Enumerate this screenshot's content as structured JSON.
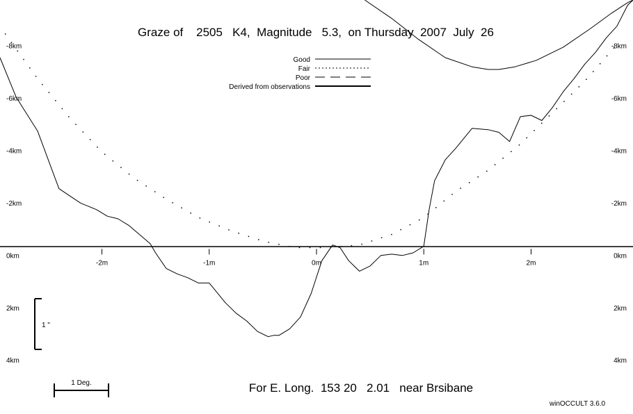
{
  "chart_data": {
    "type": "line",
    "title": "Graze of    2505   K4,  Magnitude   5.3,  on Thursday  2007  July  26",
    "footer": "For E. Long.  153 20   2.01   near Brsibane",
    "credit": "winOCCULT 3.6.0",
    "x_unit": "m",
    "y_unit": "km",
    "xlim": [
      -2.95,
      2.95
    ],
    "ylim": [
      -9.5,
      6.3
    ],
    "x_ticks": [
      {
        "value": -2,
        "label": "-2m"
      },
      {
        "value": -1,
        "label": "-1m"
      },
      {
        "value": 0,
        "label": "0m"
      },
      {
        "value": 1,
        "label": "1m"
      },
      {
        "value": 2,
        "label": "2m"
      }
    ],
    "y_ticks": [
      {
        "value": -8,
        "label": "-8km"
      },
      {
        "value": -6,
        "label": "-6km"
      },
      {
        "value": -4,
        "label": "-4km"
      },
      {
        "value": -2,
        "label": "-2km"
      },
      {
        "value": 0,
        "label": "0km"
      },
      {
        "value": 2,
        "label": "2km"
      },
      {
        "value": 4,
        "label": "4km"
      }
    ],
    "legend": [
      {
        "label": "Good",
        "style": "solid"
      },
      {
        "label": "Fair",
        "style": "dotted"
      },
      {
        "label": "Poor",
        "style": "dashed"
      },
      {
        "label": "Derived from observations",
        "style": "thick"
      }
    ],
    "scale_bar_vertical": {
      "label": "1 \""
    },
    "scale_bar_horizontal": {
      "label": "1 Deg."
    },
    "series": [
      {
        "style": "solid",
        "x": [
          -2.95,
          -2.8,
          -2.6,
          -2.4,
          -2.2,
          -2.05,
          -1.95,
          -1.85,
          -1.75,
          -1.65,
          -1.55,
          -1.5,
          -1.4,
          -1.3,
          -1.2,
          -1.1,
          -1.0,
          -0.95,
          -0.85,
          -0.75,
          -0.65,
          -0.55,
          -0.45,
          -0.4,
          -0.35,
          -0.25,
          -0.15,
          -0.05,
          0.05,
          0.15,
          0.22,
          0.3,
          0.4,
          0.5,
          0.6,
          0.7,
          0.8,
          0.9,
          1.0,
          1.05,
          1.1,
          1.2,
          1.3,
          1.45,
          1.6,
          1.7,
          1.8,
          1.9,
          2.0,
          2.1,
          2.2,
          2.3,
          2.4,
          2.5,
          2.6,
          2.7,
          2.8,
          2.9,
          2.95
        ],
        "y": [
          -7.3,
          -5.8,
          -4.5,
          -2.3,
          -1.75,
          -1.5,
          -1.25,
          -1.15,
          -0.9,
          -0.55,
          -0.2,
          0.15,
          0.75,
          0.95,
          1.1,
          1.3,
          1.3,
          1.55,
          2.05,
          2.45,
          2.75,
          3.15,
          3.35,
          3.3,
          3.3,
          3.05,
          2.6,
          1.7,
          0.45,
          -0.15,
          -0.05,
          0.45,
          0.85,
          0.65,
          0.25,
          0.2,
          0.25,
          0.15,
          -0.1,
          -1.5,
          -2.6,
          -3.4,
          -3.85,
          -4.6,
          -4.55,
          -4.45,
          -4.1,
          -5.05,
          -5.1,
          -4.9,
          -5.4,
          -6.0,
          -6.5,
          -7.05,
          -7.5,
          -8.05,
          -8.5,
          -9.3,
          -9.5
        ]
      },
      {
        "style": "dotted",
        "x": [
          -2.9,
          -2.6,
          -2.3,
          -2.0,
          -1.7,
          -1.4,
          -1.1,
          -0.8,
          -0.5,
          -0.2,
          0.1,
          0.4,
          0.7,
          1.0,
          1.3,
          1.6,
          1.9,
          2.2,
          2.5,
          2.8
        ],
        "y": [
          -8.2,
          -6.5,
          -5.0,
          -3.7,
          -2.7,
          -1.9,
          -1.2,
          -0.7,
          -0.3,
          -0.05,
          -0.05,
          -0.15,
          -0.55,
          -1.2,
          -2.2,
          -3.0,
          -4.0,
          -5.2,
          -6.4,
          -7.8
        ]
      },
      {
        "style": "solid",
        "x": [
          0.45,
          0.7,
          0.95,
          1.2,
          1.45,
          1.6,
          1.7,
          1.85,
          2.05,
          2.3,
          2.55,
          2.75,
          2.9,
          2.95
        ],
        "y": [
          -9.5,
          -8.8,
          -8.0,
          -7.3,
          -6.95,
          -6.85,
          -6.85,
          -6.95,
          -7.2,
          -7.7,
          -8.4,
          -9.0,
          -9.4,
          -9.5
        ]
      }
    ]
  }
}
